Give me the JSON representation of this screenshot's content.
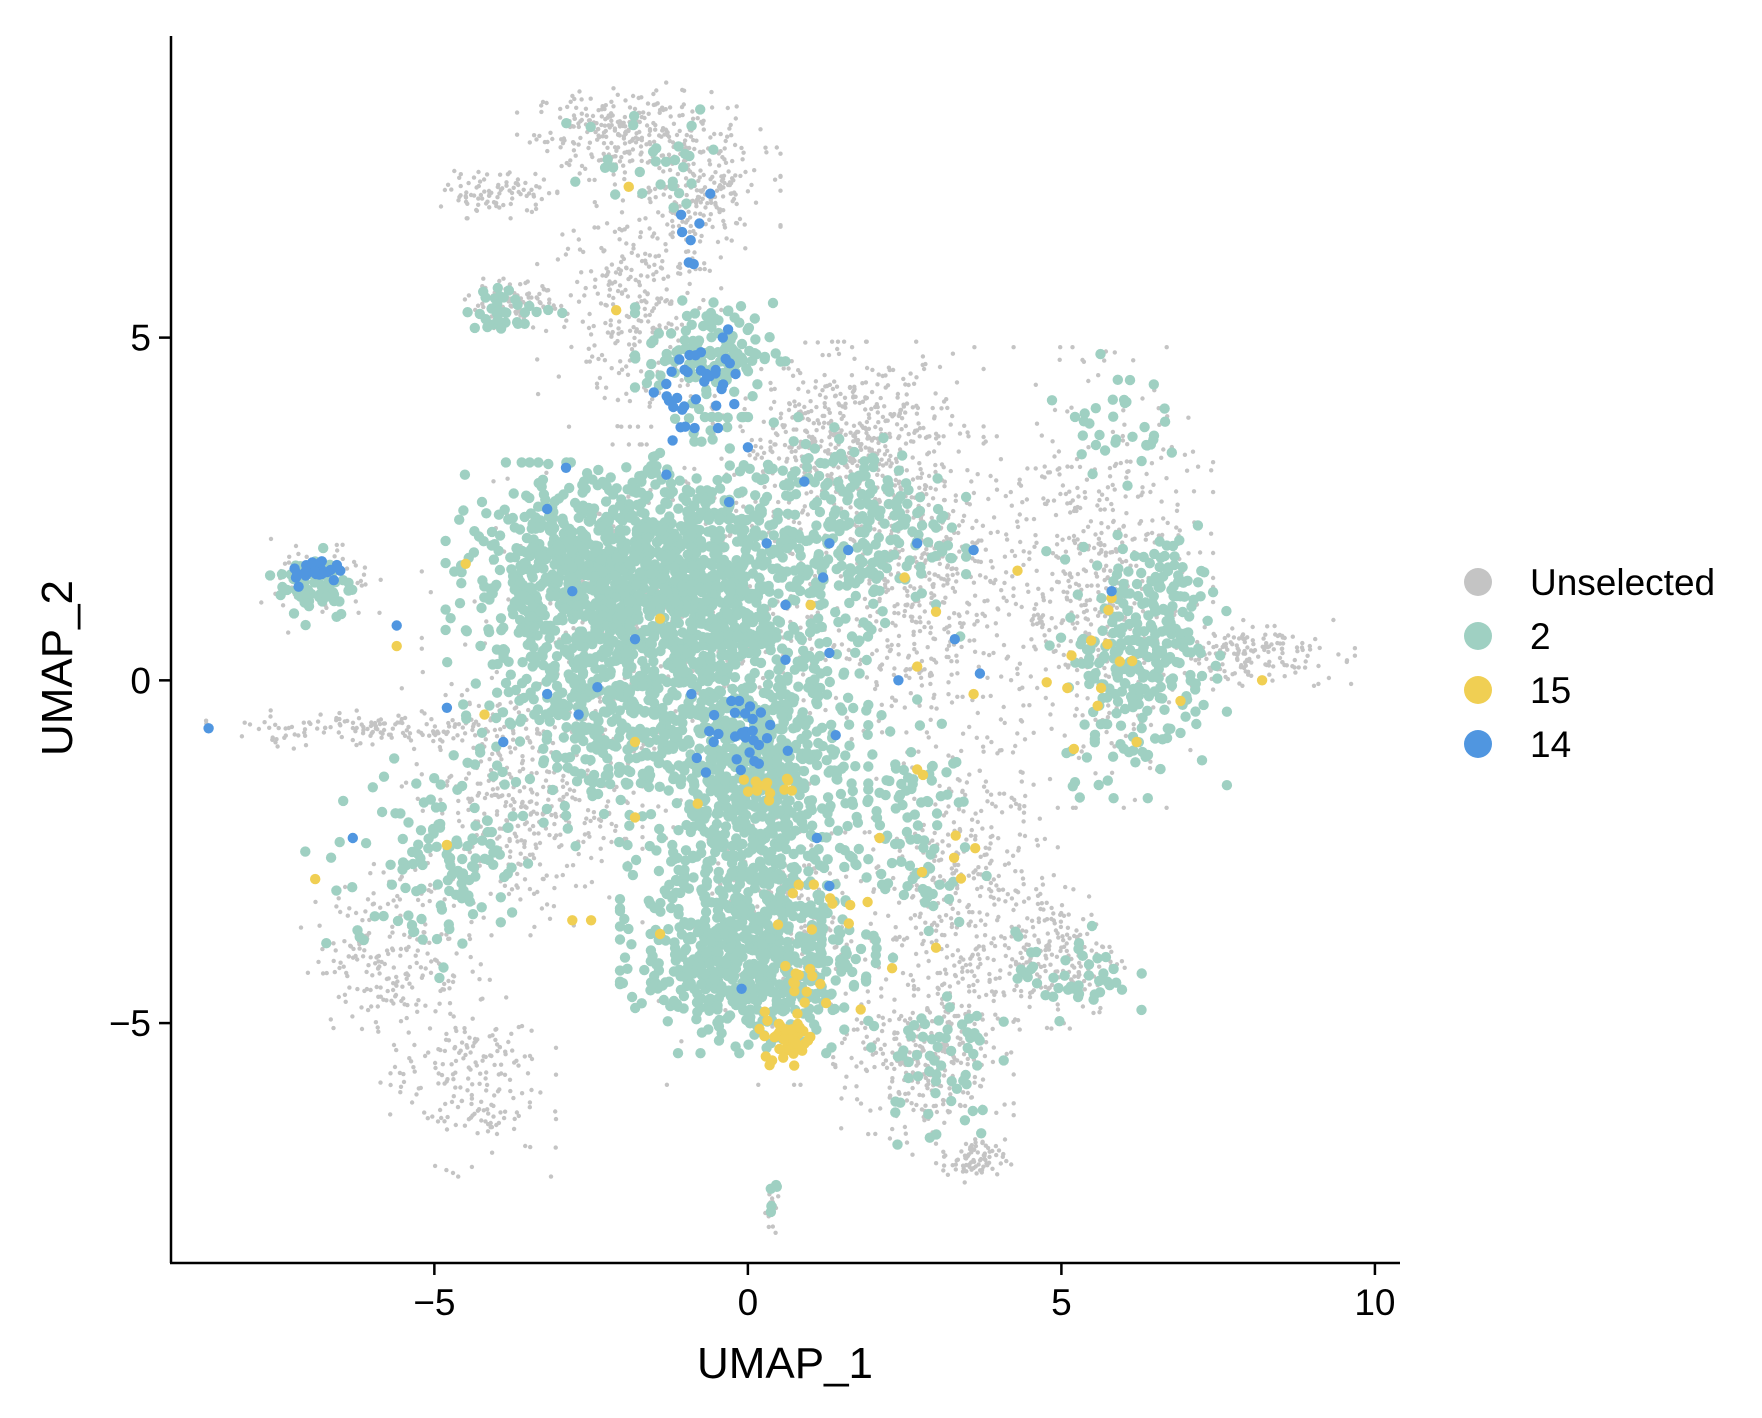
{
  "chart_data": {
    "type": "scatter",
    "title": "",
    "xlabel": "UMAP_1",
    "ylabel": "UMAP_2",
    "xlim": [
      -9.2,
      10.4
    ],
    "ylim": [
      -8.5,
      9.4
    ],
    "x_ticks": [
      -5,
      0,
      5,
      10
    ],
    "y_ticks": [
      -5,
      0,
      5
    ],
    "x_tick_labels": [
      "−5",
      "0",
      "5",
      "10"
    ],
    "y_tick_labels": [
      "−5",
      "0",
      "5"
    ],
    "grid": false,
    "legend_position": "right",
    "series": [
      {
        "name": "Unselected",
        "color": "#c4c4c4",
        "regions": [
          {
            "cx": -2.0,
            "cy": 8.0,
            "rx": 1.4,
            "ry": 0.6,
            "n": 260
          },
          {
            "cx": -0.8,
            "cy": 7.2,
            "rx": 1.1,
            "ry": 1.0,
            "n": 220
          },
          {
            "cx": -4.0,
            "cy": 7.1,
            "rx": 0.8,
            "ry": 0.3,
            "n": 90
          },
          {
            "cx": -3.7,
            "cy": 5.5,
            "rx": 0.7,
            "ry": 0.3,
            "n": 90
          },
          {
            "cx": -1.8,
            "cy": 5.5,
            "rx": 1.3,
            "ry": 1.5,
            "n": 280
          },
          {
            "cx": 1.6,
            "cy": 3.5,
            "rx": 1.8,
            "ry": 1.2,
            "n": 520
          },
          {
            "cx": 2.8,
            "cy": 1.4,
            "rx": 1.6,
            "ry": 1.8,
            "n": 420
          },
          {
            "cx": 5.5,
            "cy": 1.5,
            "rx": 1.6,
            "ry": 2.8,
            "n": 520
          },
          {
            "cx": 8.0,
            "cy": 0.4,
            "rx": 1.4,
            "ry": 0.4,
            "n": 170
          },
          {
            "cx": 3.5,
            "cy": -3.0,
            "rx": 1.3,
            "ry": 2.3,
            "n": 420
          },
          {
            "cx": 2.8,
            "cy": -5.6,
            "rx": 1.2,
            "ry": 1.1,
            "n": 280
          },
          {
            "cx": 3.6,
            "cy": -7.0,
            "rx": 0.5,
            "ry": 0.3,
            "n": 80
          },
          {
            "cx": 5.0,
            "cy": -4.0,
            "rx": 0.9,
            "ry": 0.9,
            "n": 170
          },
          {
            "cx": -3.6,
            "cy": -1.8,
            "rx": 1.6,
            "ry": 1.6,
            "n": 380
          },
          {
            "cx": -4.5,
            "cy": -5.8,
            "rx": 1.2,
            "ry": 1.2,
            "n": 200
          },
          {
            "cx": -5.7,
            "cy": -4.0,
            "rx": 1.2,
            "ry": 1.1,
            "n": 200
          },
          {
            "cx": -6.0,
            "cy": -0.7,
            "rx": 2.2,
            "ry": 0.25,
            "n": 140
          },
          {
            "cx": -6.8,
            "cy": 1.4,
            "rx": 0.8,
            "ry": 0.6,
            "n": 70
          },
          {
            "cx": -1.0,
            "cy": 0.8,
            "rx": 3.5,
            "ry": 2.2,
            "n": 520
          },
          {
            "cx": 0.5,
            "cy": -3.5,
            "rx": 1.6,
            "ry": 2.0,
            "n": 220
          },
          {
            "cx": 0.4,
            "cy": -7.7,
            "rx": 0.15,
            "ry": 0.3,
            "n": 15
          }
        ]
      },
      {
        "name": "2",
        "color": "#9fd0c2",
        "regions": [
          {
            "cx": -2.3,
            "cy": 1.5,
            "rx": 2.1,
            "ry": 1.4,
            "n": 900
          },
          {
            "cx": -0.4,
            "cy": 1.2,
            "rx": 2.0,
            "ry": 2.2,
            "n": 700
          },
          {
            "cx": 0.0,
            "cy": -1.5,
            "rx": 1.6,
            "ry": 1.9,
            "n": 700
          },
          {
            "cx": 0.0,
            "cy": -4.0,
            "rx": 1.7,
            "ry": 1.2,
            "n": 650
          },
          {
            "cx": -2.5,
            "cy": -0.5,
            "rx": 1.7,
            "ry": 1.6,
            "n": 300
          },
          {
            "cx": -0.6,
            "cy": 4.8,
            "rx": 1.0,
            "ry": 0.7,
            "n": 120
          },
          {
            "cx": -6.9,
            "cy": 1.4,
            "rx": 0.6,
            "ry": 0.5,
            "n": 70
          },
          {
            "cx": 6.2,
            "cy": 0.2,
            "rx": 1.2,
            "ry": 1.6,
            "n": 220
          },
          {
            "cx": 6.7,
            "cy": 1.3,
            "rx": 0.6,
            "ry": 0.8,
            "n": 70
          },
          {
            "cx": 1.8,
            "cy": 2.2,
            "rx": 1.4,
            "ry": 1.3,
            "n": 200
          },
          {
            "cx": 2.5,
            "cy": -2.2,
            "rx": 1.1,
            "ry": 1.6,
            "n": 100
          },
          {
            "cx": 5.2,
            "cy": -4.3,
            "rx": 0.9,
            "ry": 0.6,
            "n": 45
          },
          {
            "cx": -4.6,
            "cy": -2.4,
            "rx": 1.0,
            "ry": 1.2,
            "n": 90
          },
          {
            "cx": -3.8,
            "cy": 5.4,
            "rx": 0.7,
            "ry": 0.3,
            "n": 35
          },
          {
            "cx": -1.5,
            "cy": 7.5,
            "rx": 1.4,
            "ry": 0.9,
            "n": 30
          },
          {
            "cx": 5.8,
            "cy": 3.8,
            "rx": 0.8,
            "ry": 0.8,
            "n": 35
          },
          {
            "cx": 3.0,
            "cy": -5.5,
            "rx": 0.9,
            "ry": 1.2,
            "n": 60
          },
          {
            "cx": -5.5,
            "cy": -3.0,
            "rx": 1.3,
            "ry": 1.8,
            "n": 40
          },
          {
            "cx": 0.45,
            "cy": -7.5,
            "rx": 0.12,
            "ry": 0.4,
            "n": 5
          }
        ]
      },
      {
        "name": "15",
        "color": "#f0cf53",
        "regions": [
          {
            "cx": 0.6,
            "cy": -5.2,
            "rx": 0.45,
            "ry": 0.35,
            "n": 42
          },
          {
            "cx": 0.9,
            "cy": -4.5,
            "rx": 0.3,
            "ry": 0.3,
            "n": 12
          },
          {
            "cx": 0.3,
            "cy": -1.6,
            "rx": 0.5,
            "ry": 0.3,
            "n": 14
          },
          {
            "cx": 1.2,
            "cy": -3.3,
            "rx": 0.6,
            "ry": 0.6,
            "n": 10
          },
          {
            "cx": 5.5,
            "cy": 0.2,
            "rx": 0.8,
            "ry": 1.0,
            "n": 10
          },
          {
            "cx": 3.2,
            "cy": -2.5,
            "rx": 0.8,
            "ry": 1.2,
            "n": 6
          }
        ],
        "points": [
          [
            -1.9,
            7.2
          ],
          [
            -2.1,
            5.4
          ],
          [
            -4.5,
            1.7
          ],
          [
            -5.6,
            0.5
          ],
          [
            -4.2,
            -0.5
          ],
          [
            -6.9,
            -2.9
          ],
          [
            -4.8,
            -2.4
          ],
          [
            -2.8,
            -3.5
          ],
          [
            -2.5,
            -3.5
          ],
          [
            -1.4,
            -3.7
          ],
          [
            -0.8,
            -1.8
          ],
          [
            -1.8,
            -0.9
          ],
          [
            -1.4,
            0.9
          ],
          [
            -1.8,
            -2.0
          ],
          [
            2.1,
            -2.3
          ],
          [
            2.3,
            -4.2
          ],
          [
            1.8,
            -4.8
          ],
          [
            2.7,
            0.2
          ],
          [
            3.6,
            -0.2
          ],
          [
            2.5,
            1.5
          ],
          [
            4.3,
            1.6
          ],
          [
            3.0,
            1.0
          ],
          [
            5.8,
            1.2
          ],
          [
            6.9,
            -0.3
          ],
          [
            8.2,
            -0.0
          ],
          [
            6.2,
            -0.9
          ],
          [
            5.2,
            -1.0
          ],
          [
            2.7,
            -1.3
          ],
          [
            3.0,
            -3.9
          ],
          [
            1.0,
            1.1
          ]
        ]
      },
      {
        "name": "14",
        "color": "#5096e0",
        "regions": [
          {
            "cx": -6.9,
            "cy": 1.6,
            "rx": 0.4,
            "ry": 0.2,
            "n": 22
          },
          {
            "cx": -0.6,
            "cy": 4.4,
            "rx": 0.7,
            "ry": 0.6,
            "n": 32
          },
          {
            "cx": 0.0,
            "cy": -0.9,
            "rx": 0.8,
            "ry": 0.5,
            "n": 30
          },
          {
            "cx": -0.9,
            "cy": 6.4,
            "rx": 0.2,
            "ry": 0.8,
            "n": 6
          }
        ],
        "points": [
          [
            -0.6,
            7.1
          ],
          [
            -1.3,
            3.0
          ],
          [
            -1.0,
            3.7
          ],
          [
            -1.2,
            3.5
          ],
          [
            -1.5,
            4.2
          ],
          [
            0.0,
            3.4
          ],
          [
            -3.2,
            2.5
          ],
          [
            -2.9,
            3.1
          ],
          [
            -2.8,
            1.3
          ],
          [
            -0.3,
            2.6
          ],
          [
            0.3,
            2.0
          ],
          [
            1.3,
            2.0
          ],
          [
            1.6,
            1.9
          ],
          [
            2.7,
            2.0
          ],
          [
            3.6,
            1.9
          ],
          [
            5.8,
            1.3
          ],
          [
            1.2,
            1.5
          ],
          [
            0.6,
            1.1
          ],
          [
            -1.8,
            0.6
          ],
          [
            0.6,
            0.3
          ],
          [
            3.3,
            0.6
          ],
          [
            3.7,
            0.1
          ],
          [
            2.4,
            0.0
          ],
          [
            -0.9,
            -0.2
          ],
          [
            -2.4,
            -0.1
          ],
          [
            -3.2,
            -0.2
          ],
          [
            -2.7,
            -0.5
          ],
          [
            -3.9,
            -0.9
          ],
          [
            -4.8,
            -0.4
          ],
          [
            -5.6,
            0.8
          ],
          [
            -6.5,
            1.6
          ],
          [
            -8.6,
            -0.7
          ],
          [
            -6.3,
            -2.3
          ],
          [
            -0.1,
            -4.5
          ],
          [
            1.1,
            -2.3
          ],
          [
            1.3,
            -3.0
          ],
          [
            1.4,
            -0.8
          ],
          [
            1.3,
            0.4
          ],
          [
            0.9,
            2.9
          ],
          [
            -0.4,
            5.0
          ]
        ]
      }
    ]
  }
}
